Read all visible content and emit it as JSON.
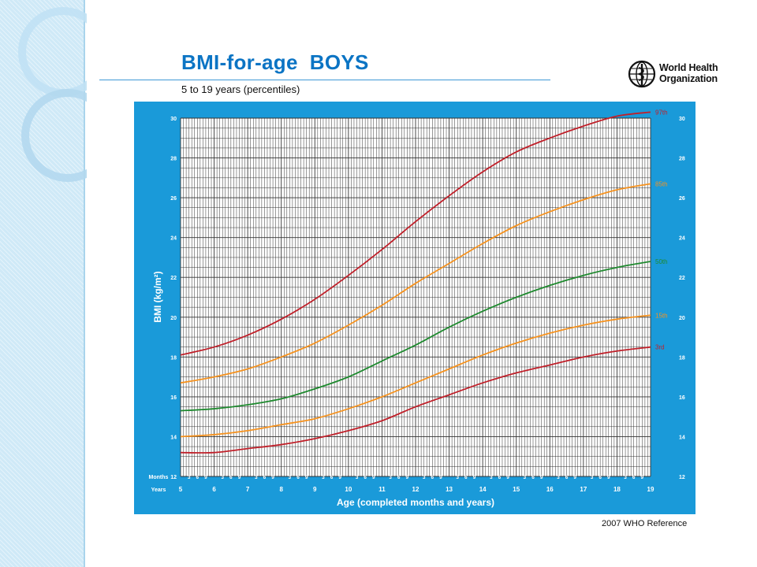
{
  "header": {
    "title": "BMI-for-age  BOYS",
    "subtitle": "5 to 19 years (percentiles)",
    "org_line1": "World Health",
    "org_line2": "Organization",
    "reference": "2007  WHO Reference"
  },
  "colors": {
    "panel": "#1a9ad9",
    "grid": "#333333",
    "p97": "#c0202a",
    "p85": "#f6921e",
    "p50": "#1f8a2f",
    "p15": "#f6921e",
    "p3": "#c0202a"
  },
  "chart_data": {
    "type": "line",
    "xlabel": "Age (completed months and years)",
    "ylabel": "BMI (kg/m²)",
    "row_labels": {
      "months": "Months",
      "years": "Years"
    },
    "xlim": [
      5,
      19
    ],
    "ylim": [
      12,
      30
    ],
    "x_ticks": [
      "5",
      "6",
      "7",
      "8",
      "9",
      "10",
      "11",
      "12",
      "13",
      "14",
      "15",
      "16",
      "17",
      "18",
      "19"
    ],
    "month_ticks": [
      "3",
      "6",
      "9"
    ],
    "y_ticks": [
      "12",
      "14",
      "16",
      "18",
      "20",
      "22",
      "24",
      "26",
      "28",
      "30"
    ],
    "grid": true,
    "x": [
      5,
      6,
      7,
      8,
      9,
      10,
      11,
      12,
      13,
      14,
      15,
      16,
      17,
      18,
      19
    ],
    "series": [
      {
        "name": "97th",
        "color": "#c0202a",
        "values": [
          18.1,
          18.5,
          19.1,
          19.9,
          20.9,
          22.1,
          23.4,
          24.8,
          26.1,
          27.3,
          28.3,
          29.0,
          29.6,
          30.1,
          30.3
        ]
      },
      {
        "name": "85th",
        "color": "#f6921e",
        "values": [
          16.7,
          17.0,
          17.4,
          18.0,
          18.7,
          19.6,
          20.6,
          21.7,
          22.7,
          23.7,
          24.6,
          25.3,
          25.9,
          26.4,
          26.7
        ]
      },
      {
        "name": "50th",
        "color": "#1f8a2f",
        "values": [
          15.3,
          15.4,
          15.6,
          15.9,
          16.4,
          17.0,
          17.8,
          18.6,
          19.5,
          20.3,
          21.0,
          21.6,
          22.1,
          22.5,
          22.8
        ]
      },
      {
        "name": "15th",
        "color": "#f6921e",
        "values": [
          14.0,
          14.1,
          14.3,
          14.6,
          14.9,
          15.4,
          16.0,
          16.7,
          17.4,
          18.1,
          18.7,
          19.2,
          19.6,
          19.9,
          20.1
        ]
      },
      {
        "name": "3rd",
        "color": "#c0202a",
        "values": [
          13.2,
          13.2,
          13.4,
          13.6,
          13.9,
          14.3,
          14.8,
          15.5,
          16.1,
          16.7,
          17.2,
          17.6,
          18.0,
          18.3,
          18.5
        ]
      }
    ]
  }
}
